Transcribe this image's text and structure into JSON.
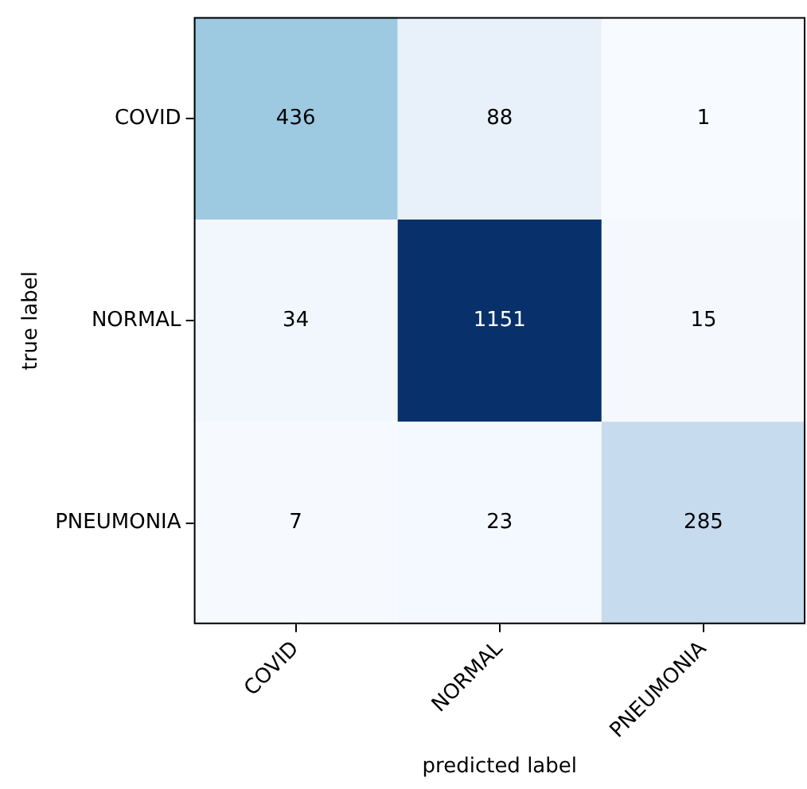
{
  "chart_data": {
    "type": "heatmap",
    "xlabel": "predicted label",
    "ylabel": "true label",
    "categories": [
      "COVID",
      "NORMAL",
      "PNEUMONIA"
    ],
    "y_categories": [
      "COVID",
      "NORMAL",
      "PNEUMONIA"
    ],
    "cells": [
      [
        436,
        88,
        1
      ],
      [
        34,
        1151,
        15
      ],
      [
        7,
        23,
        285
      ]
    ],
    "data_labels": true
  }
}
